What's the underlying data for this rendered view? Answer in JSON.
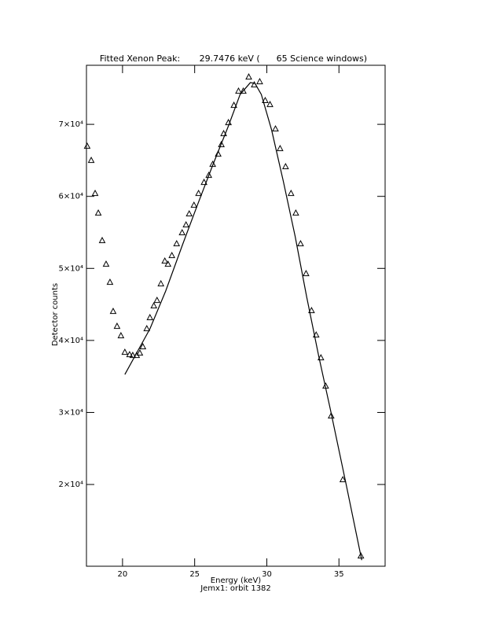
{
  "chart_data": {
    "type": "scatter",
    "title": "Fitted Xenon Peak:       29.7476 keV (      65 Science windows)",
    "x_label": "Energy (keV)",
    "subtitle": "Jemx1: orbit 1382",
    "y_label": "Detector counts",
    "color": "#000000",
    "xlim": [
      17.5,
      38.2
    ],
    "ylim": [
      8650,
      78200
    ],
    "xticks": [
      20,
      25,
      30,
      35
    ],
    "yticks": [
      {
        "value": 20000,
        "label": "2×10⁴"
      },
      {
        "value": 30000,
        "label": "3×10⁴"
      },
      {
        "value": 40000,
        "label": "4×10⁴"
      },
      {
        "value": 50000,
        "label": "5×10⁴"
      },
      {
        "value": 60000,
        "label": "6×10⁴"
      },
      {
        "value": 70000,
        "label": "7×10⁴"
      }
    ],
    "series": [
      {
        "marker": "triangle",
        "x": [
          17.55,
          17.83,
          18.1,
          18.32,
          18.59,
          18.86,
          19.13,
          19.35,
          19.62,
          19.89,
          20.16,
          20.49,
          20.71,
          20.98,
          21.2,
          21.41,
          21.68,
          21.9,
          22.17,
          22.39,
          22.66,
          22.93,
          23.15,
          23.42,
          23.75,
          24.13,
          24.4,
          24.62,
          24.95,
          25.27,
          25.65,
          25.98,
          26.25,
          26.63,
          26.85,
          27.01,
          27.34,
          27.72,
          28.04,
          28.37,
          28.75,
          29.13,
          29.51,
          29.89,
          30.22,
          30.6,
          30.92,
          31.3,
          31.68,
          32.01,
          32.34,
          32.72,
          33.1,
          33.42,
          33.75,
          34.08,
          34.46,
          35.27,
          36.52
        ],
        "values": [
          66940,
          64970,
          60390,
          57660,
          53840,
          50560,
          48050,
          44010,
          41940,
          40630,
          38330,
          38000,
          37900,
          37900,
          38220,
          39100,
          41610,
          43140,
          44780,
          45540,
          47840,
          51000,
          50560,
          51760,
          53400,
          54930,
          56020,
          57550,
          58750,
          60390,
          61920,
          62900,
          64430,
          65850,
          67160,
          68690,
          70220,
          72620,
          74590,
          74590,
          76550,
          75460,
          75900,
          73280,
          72730,
          69340,
          66610,
          64100,
          60390,
          57660,
          53400,
          49250,
          44120,
          40730,
          37570,
          33640,
          29490,
          20640,
          10050
        ]
      },
      {
        "marker": "line",
        "x": [
          20.16,
          21.09,
          21.9,
          22.99,
          24.18,
          25.16,
          26.25,
          27.34,
          28.15,
          28.86,
          29.18,
          29.62,
          30.33,
          31.14,
          31.96,
          32.77,
          33.59,
          34.4,
          35.49,
          36.58
        ],
        "values": [
          35270,
          38660,
          41610,
          46850,
          53400,
          58640,
          64320,
          69780,
          74150,
          75790,
          75680,
          74150,
          69240,
          62140,
          54490,
          45980,
          37900,
          30470,
          20100,
          9500
        ]
      }
    ]
  }
}
